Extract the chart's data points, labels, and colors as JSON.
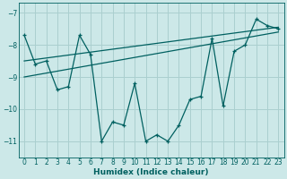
{
  "xlabel": "Humidex (Indice chaleur)",
  "xlim": [
    -0.5,
    23.5
  ],
  "ylim": [
    -11.5,
    -6.7
  ],
  "yticks": [
    -11,
    -10,
    -9,
    -8,
    -7
  ],
  "xticks": [
    0,
    1,
    2,
    3,
    4,
    5,
    6,
    7,
    8,
    9,
    10,
    11,
    12,
    13,
    14,
    15,
    16,
    17,
    18,
    19,
    20,
    21,
    22,
    23
  ],
  "bg_color": "#cce8e8",
  "grid_color": "#aacfcf",
  "line_color": "#006060",
  "main_x": [
    0,
    1,
    2,
    3,
    4,
    5,
    6,
    7,
    8,
    9,
    10,
    11,
    12,
    13,
    14,
    15,
    16,
    17,
    18,
    19,
    20,
    21,
    22,
    23
  ],
  "main_y": [
    -7.7,
    -8.6,
    -8.5,
    -9.4,
    -9.3,
    -7.7,
    -8.3,
    -11.0,
    -10.4,
    -10.5,
    -9.2,
    -11.0,
    -10.8,
    -11.0,
    -10.5,
    -9.7,
    -9.6,
    -7.8,
    -9.9,
    -8.2,
    -8.0,
    -7.2,
    -7.4,
    -7.5
  ],
  "trend1_x": [
    0,
    23
  ],
  "trend1_y": [
    -8.5,
    -7.45
  ],
  "trend2_x": [
    0,
    23
  ],
  "trend2_y": [
    -9.0,
    -7.6
  ],
  "marker": "+"
}
